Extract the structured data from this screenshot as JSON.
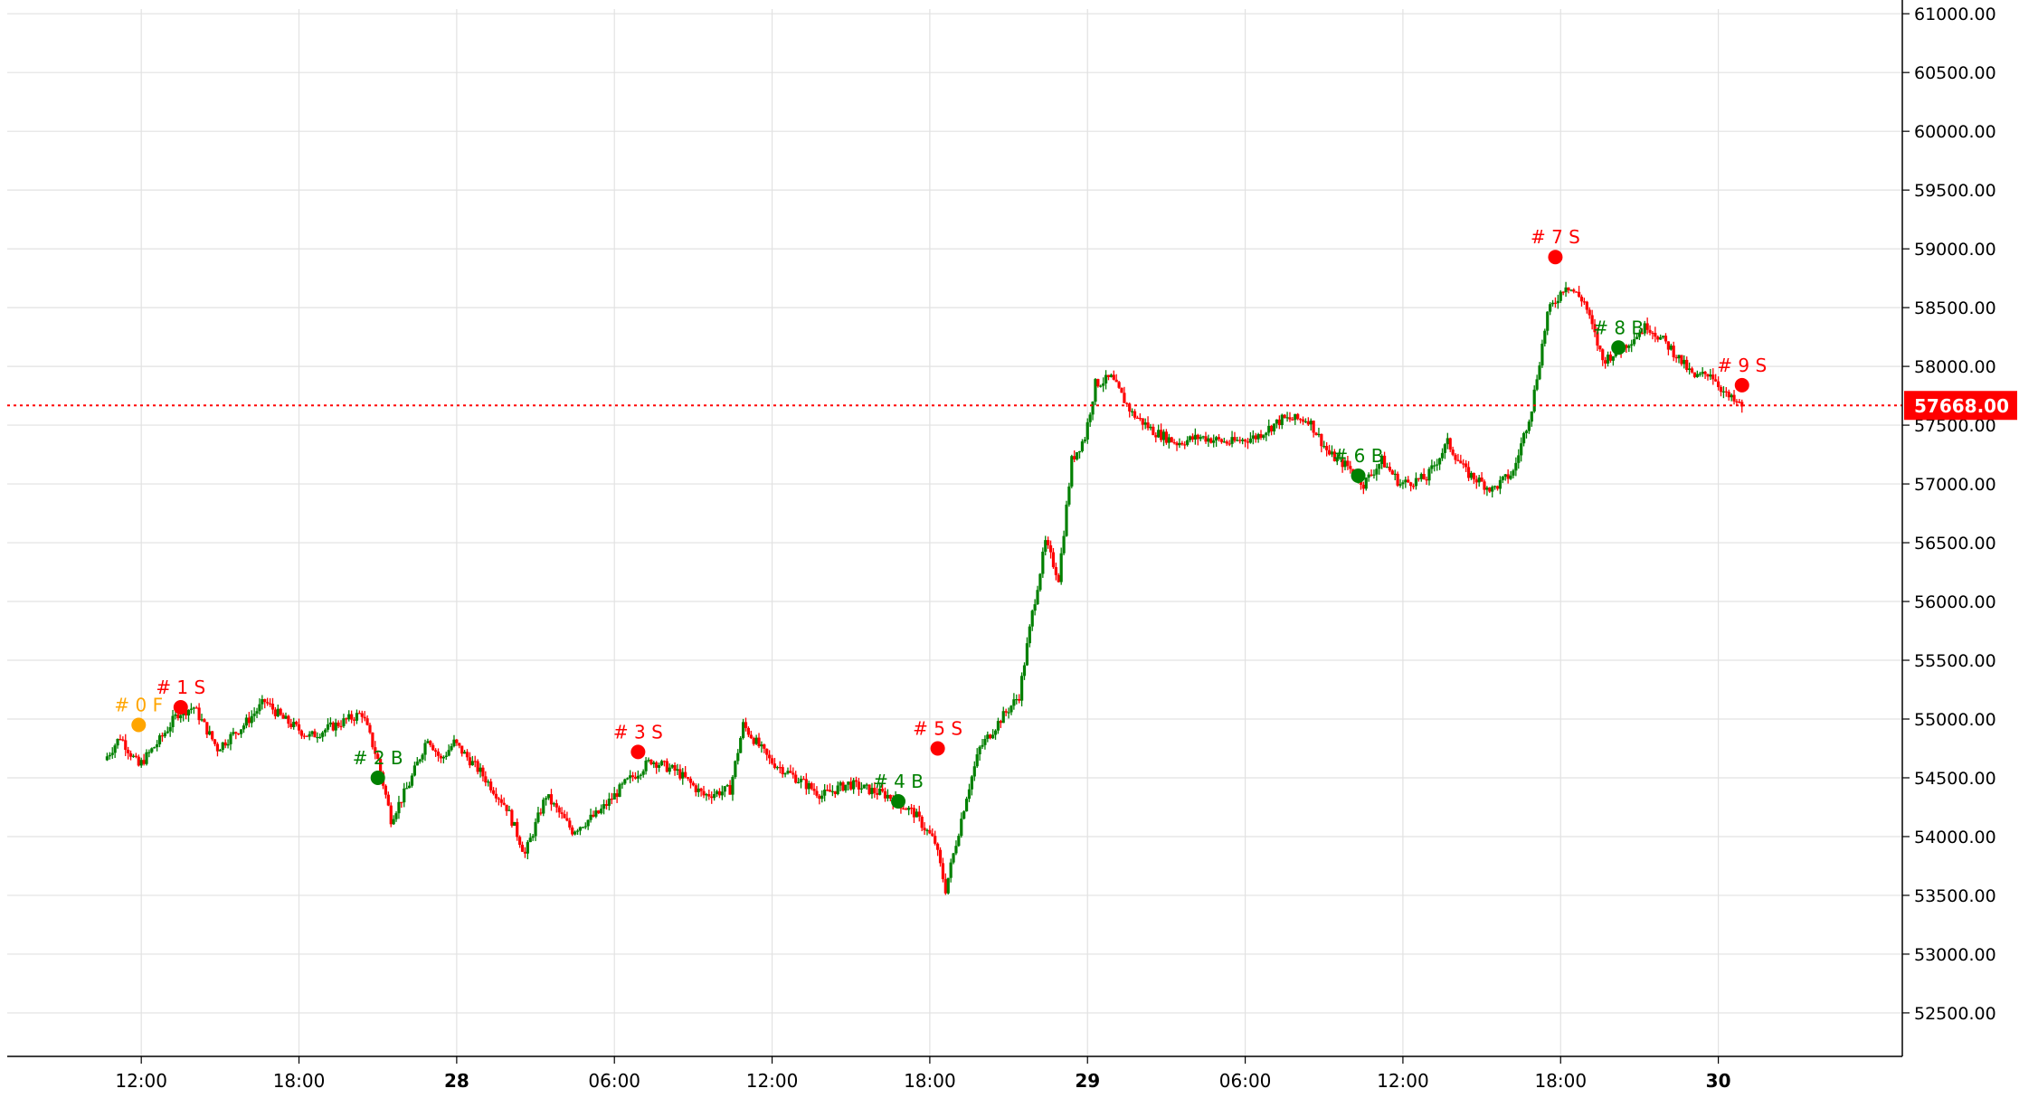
{
  "chart_data": {
    "type": "candlestick",
    "y_ticks": [
      52500,
      53000,
      53500,
      54000,
      54500,
      55000,
      55500,
      56000,
      56500,
      57000,
      57500,
      58000,
      58500,
      59000,
      59500,
      60000,
      60500,
      61000
    ],
    "y_tick_labels": [
      "52500.00",
      "53000.00",
      "53500.00",
      "54000.00",
      "54500.00",
      "55000.00",
      "55500.00",
      "56000.00",
      "56500.00",
      "57000.00",
      "57500.00",
      "58000.00",
      "58500.00",
      "59000.00",
      "59500.00",
      "60000.00",
      "60500.00",
      "61000.00"
    ],
    "ylim": [
      52130,
      61040
    ],
    "x_tick_labels": [
      {
        "hour": 12,
        "label": "12:00",
        "bold": false
      },
      {
        "hour": 18,
        "label": "18:00",
        "bold": false
      },
      {
        "hour": 24,
        "label": "28",
        "bold": true
      },
      {
        "hour": 30,
        "label": "06:00",
        "bold": false
      },
      {
        "hour": 36,
        "label": "12:00",
        "bold": false
      },
      {
        "hour": 42,
        "label": "18:00",
        "bold": false
      },
      {
        "hour": 48,
        "label": "29",
        "bold": true
      },
      {
        "hour": 54,
        "label": "06:00",
        "bold": false
      },
      {
        "hour": 60,
        "label": "12:00",
        "bold": false
      },
      {
        "hour": 66,
        "label": "18:00",
        "bold": false
      },
      {
        "hour": 72,
        "label": "30",
        "bold": true
      }
    ],
    "x_range_hours": [
      6.9,
      79.0
    ],
    "data_range_hours": [
      10.7,
      72.9
    ],
    "last_price": 57668,
    "last_price_label": "57668.00",
    "colors": {
      "up": "#008000",
      "down": "#ff0000",
      "fill": "#ffa500"
    },
    "price_path": [
      [
        10.7,
        54650
      ],
      [
        11.3,
        54850
      ],
      [
        12.0,
        54600
      ],
      [
        12.8,
        54820
      ],
      [
        13.5,
        55050
      ],
      [
        14.1,
        55100
      ],
      [
        15.0,
        54750
      ],
      [
        16.0,
        54950
      ],
      [
        16.8,
        55150
      ],
      [
        17.5,
        55000
      ],
      [
        18.5,
        54850
      ],
      [
        19.5,
        54950
      ],
      [
        20.5,
        55050
      ],
      [
        21.1,
        54650
      ],
      [
        21.6,
        54150
      ],
      [
        22.3,
        54450
      ],
      [
        23.0,
        54850
      ],
      [
        23.5,
        54650
      ],
      [
        24.0,
        54800
      ],
      [
        25.0,
        54550
      ],
      [
        26.0,
        54250
      ],
      [
        26.7,
        53850
      ],
      [
        27.5,
        54350
      ],
      [
        28.5,
        54050
      ],
      [
        29.5,
        54200
      ],
      [
        30.5,
        54450
      ],
      [
        31.5,
        54650
      ],
      [
        32.5,
        54550
      ],
      [
        33.5,
        54350
      ],
      [
        34.5,
        54400
      ],
      [
        35.0,
        54950
      ],
      [
        36.0,
        54650
      ],
      [
        37.0,
        54500
      ],
      [
        38.0,
        54350
      ],
      [
        39.0,
        54450
      ],
      [
        40.5,
        54350
      ],
      [
        41.5,
        54200
      ],
      [
        42.3,
        53950
      ],
      [
        42.7,
        53550
      ],
      [
        43.5,
        54350
      ],
      [
        44.0,
        54750
      ],
      [
        44.8,
        55000
      ],
      [
        45.5,
        55200
      ],
      [
        46.0,
        55900
      ],
      [
        46.5,
        56500
      ],
      [
        47.0,
        56200
      ],
      [
        47.5,
        57200
      ],
      [
        48.0,
        57400
      ],
      [
        48.4,
        57850
      ],
      [
        49.0,
        57900
      ],
      [
        49.8,
        57600
      ],
      [
        50.6,
        57450
      ],
      [
        51.5,
        57350
      ],
      [
        52.4,
        57400
      ],
      [
        53.5,
        57350
      ],
      [
        54.5,
        57400
      ],
      [
        55.5,
        57550
      ],
      [
        56.5,
        57550
      ],
      [
        57.3,
        57250
      ],
      [
        58.0,
        57150
      ],
      [
        58.6,
        57000
      ],
      [
        59.3,
        57200
      ],
      [
        60.0,
        57000
      ],
      [
        61.0,
        57050
      ],
      [
        61.8,
        57350
      ],
      [
        62.5,
        57100
      ],
      [
        63.5,
        56950
      ],
      [
        64.3,
        57100
      ],
      [
        65.0,
        57650
      ],
      [
        65.6,
        58450
      ],
      [
        66.3,
        58700
      ],
      [
        67.0,
        58550
      ],
      [
        67.7,
        58050
      ],
      [
        68.4,
        58150
      ],
      [
        69.4,
        58350
      ],
      [
        70.3,
        58150
      ],
      [
        71.2,
        57900
      ],
      [
        71.8,
        57950
      ],
      [
        72.4,
        57750
      ],
      [
        72.9,
        57668
      ]
    ],
    "trades": [
      {
        "label": "# 0 F",
        "hour": 11.9,
        "price": 54950,
        "color": "#ffa500",
        "label_above": true
      },
      {
        "label": "# 1 S",
        "hour": 13.5,
        "price": 55100,
        "color": "#ff0000",
        "label_above": true
      },
      {
        "label": "# 2 B",
        "hour": 21.0,
        "price": 54500,
        "color": "#008000",
        "label_above": true
      },
      {
        "label": "# 3 S",
        "hour": 30.9,
        "price": 54720,
        "color": "#ff0000",
        "label_above": true
      },
      {
        "label": "# 4 B",
        "hour": 40.8,
        "price": 54300,
        "color": "#008000",
        "label_above": true
      },
      {
        "label": "# 5 S",
        "hour": 42.3,
        "price": 54750,
        "color": "#ff0000",
        "label_above": true
      },
      {
        "label": "# 6 B",
        "hour": 58.3,
        "price": 57070,
        "color": "#008000",
        "label_above": true
      },
      {
        "label": "# 7 S",
        "hour": 65.8,
        "price": 58930,
        "color": "#ff0000",
        "label_above": true
      },
      {
        "label": "# 8 B",
        "hour": 68.2,
        "price": 58160,
        "color": "#008000",
        "label_above": true
      },
      {
        "label": "# 9 S",
        "hour": 72.9,
        "price": 57840,
        "color": "#ff0000",
        "label_above": true
      }
    ]
  }
}
